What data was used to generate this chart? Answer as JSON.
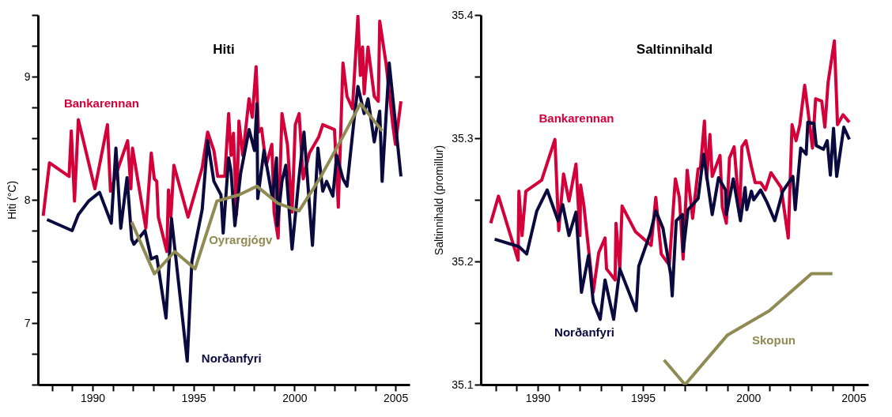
{
  "chart_data": [
    {
      "type": "line",
      "title": "Hiti",
      "ylabel": "Hiti (°C)",
      "xlim": [
        1987.3,
        2005.7
      ],
      "ylim": [
        6.5,
        9.5
      ],
      "xticks": [
        {
          "value": 1988,
          "label": null
        },
        {
          "value": 1989,
          "label": null
        },
        1990,
        {
          "value": 1991,
          "label": null
        },
        {
          "value": 1992,
          "label": null
        },
        {
          "value": 1993,
          "label": null
        },
        {
          "value": 1994,
          "label": null
        },
        1995,
        {
          "value": 1996,
          "label": null
        },
        {
          "value": 1997,
          "label": null
        },
        {
          "value": 1998,
          "label": null
        },
        {
          "value": 1999,
          "label": null
        },
        2000,
        {
          "value": 2001,
          "label": null
        },
        {
          "value": 2002,
          "label": null
        },
        {
          "value": 2003,
          "label": null
        },
        {
          "value": 2004,
          "label": null
        },
        2005
      ],
      "yticks": [
        {
          "value": 6.5,
          "label": null
        },
        {
          "value": 6.75,
          "label": null
        },
        7,
        {
          "value": 7.25,
          "label": null
        },
        {
          "value": 7.5,
          "label": null
        },
        {
          "value": 7.75,
          "label": null
        },
        8,
        {
          "value": 8.25,
          "label": null
        },
        {
          "value": 8.5,
          "label": null
        },
        {
          "value": 8.75,
          "label": null
        },
        9,
        {
          "value": 9.25,
          "label": null
        },
        {
          "value": 9.5,
          "label": null
        }
      ],
      "series": [
        {
          "name": "Bankarennan",
          "color": "#d4003a",
          "x": [
            1987.56,
            1987.87,
            1988.84,
            1988.95,
            1989.11,
            1989.3,
            1990.12,
            1990.74,
            1990.89,
            1991.32,
            1991.74,
            1991.9,
            1991.98,
            1992.64,
            1992.91,
            1993.06,
            1993.18,
            1993.26,
            1993.68,
            1993.76,
            1993.88,
            1994.03,
            1994.73,
            1995.43,
            1995.7,
            1996.01,
            1996.2,
            1996.55,
            1996.74,
            1996.86,
            1996.98,
            1997.13,
            1997.25,
            1997.44,
            1997.75,
            1997.91,
            1998.1,
            1998.22,
            1998.37,
            1998.6,
            1998.88,
            1998.99,
            1999.19,
            1999.38,
            1999.65,
            1999.88,
            2000.04,
            2000.23,
            2000.43,
            2000.74,
            2001.2,
            2001.4,
            2001.98,
            2002.17,
            2002.4,
            2002.6,
            2002.87,
            2003.14,
            2003.26,
            2003.37,
            2003.45,
            2003.64,
            2003.95,
            2004.15,
            2004.22,
            2004.53,
            2004.88,
            2005.0,
            2005.27
          ],
          "values": [
            7.87,
            8.3,
            8.19,
            8.56,
            7.99,
            8.65,
            8.09,
            8.61,
            8.07,
            8.28,
            8.48,
            8.09,
            8.42,
            7.77,
            8.38,
            8.17,
            8.15,
            7.86,
            7.58,
            8.08,
            7.86,
            8.28,
            7.86,
            8.26,
            8.55,
            8.4,
            8.19,
            8.19,
            8.7,
            8.36,
            8.54,
            7.88,
            8.64,
            8.36,
            8.82,
            8.67,
            9.08,
            8.55,
            8.58,
            8.28,
            8.45,
            7.9,
            7.69,
            8.7,
            8.45,
            7.9,
            8.61,
            8.7,
            8.17,
            8.38,
            8.51,
            8.61,
            8.57,
            7.94,
            9.11,
            8.84,
            8.74,
            9.49,
            9.01,
            9.24,
            8.86,
            9.24,
            8.84,
            8.8,
            9.45,
            9.11,
            8.59,
            8.45,
            8.8
          ]
        },
        {
          "name": "Norðanfyri",
          "color": "#0b0a3e",
          "x": [
            1987.75,
            1988.99,
            1989.3,
            1989.81,
            1990.35,
            1990.93,
            1991.16,
            1991.4,
            1991.71,
            1991.94,
            1992.05,
            1992.6,
            1992.91,
            1993.18,
            1993.64,
            1993.91,
            1994.69,
            1994.92,
            1995.43,
            1995.7,
            1996.01,
            1996.36,
            1996.47,
            1996.74,
            1996.86,
            1997.05,
            1997.33,
            1997.75,
            1998.02,
            1998.14,
            1998.18,
            1998.49,
            1998.72,
            1998.91,
            1999.11,
            1999.15,
            1999.38,
            1999.57,
            1999.88,
            2000.23,
            2000.47,
            2000.89,
            2001.16,
            2001.4,
            2001.59,
            2001.9,
            2002.09,
            2002.4,
            2002.6,
            2002.95,
            2003.14,
            2003.45,
            2003.64,
            2003.95,
            2004.22,
            2004.34,
            2004.69,
            2005.27
          ],
          "values": [
            7.84,
            7.75,
            7.88,
            7.99,
            8.06,
            7.81,
            8.42,
            7.77,
            8.18,
            7.68,
            7.64,
            7.75,
            7.52,
            7.54,
            7.04,
            7.85,
            6.69,
            7.5,
            7.92,
            8.48,
            8.15,
            8.04,
            7.73,
            8.34,
            8.23,
            7.79,
            8.21,
            8.57,
            8.4,
            8.78,
            8.01,
            8.4,
            8.19,
            8.01,
            8.34,
            7.79,
            8.15,
            8.28,
            7.6,
            8.19,
            8.55,
            7.63,
            8.42,
            8.07,
            8.15,
            8.03,
            8.36,
            8.17,
            8.11,
            8.65,
            8.92,
            8.7,
            8.82,
            8.47,
            8.72,
            8.15,
            9.11,
            8.19
          ]
        },
        {
          "name": "Oyrargjógv",
          "color": "#8f8b52",
          "x": [
            1991.94,
            1993.06,
            1994.07,
            1995.08,
            1996.16,
            1997.25,
            1998.14,
            1999.19,
            2000.23,
            2001.24,
            2002.29,
            2003.26,
            2004.34
          ],
          "values": [
            7.82,
            7.4,
            7.58,
            7.44,
            7.99,
            8.04,
            8.11,
            7.97,
            7.91,
            8.17,
            8.48,
            8.78,
            8.56
          ]
        }
      ]
    },
    {
      "type": "line",
      "title": "Saltinnihald",
      "ylabel": "Saltinnihald (promillur)",
      "xlim": [
        1987.3,
        2005.7
      ],
      "ylim": [
        35.1,
        35.4
      ],
      "xticks": [
        {
          "value": 1988,
          "label": null
        },
        {
          "value": 1989,
          "label": null
        },
        1990,
        {
          "value": 1991,
          "label": null
        },
        {
          "value": 1992,
          "label": null
        },
        {
          "value": 1993,
          "label": null
        },
        {
          "value": 1994,
          "label": null
        },
        1995,
        {
          "value": 1996,
          "label": null
        },
        {
          "value": 1997,
          "label": null
        },
        {
          "value": 1998,
          "label": null
        },
        {
          "value": 1999,
          "label": null
        },
        2000,
        {
          "value": 2001,
          "label": null
        },
        {
          "value": 2002,
          "label": null
        },
        {
          "value": 2003,
          "label": null
        },
        {
          "value": 2004,
          "label": null
        },
        2005
      ],
      "yticks": [
        35.1,
        {
          "value": 35.15,
          "label": null
        },
        35.2,
        {
          "value": 35.25,
          "label": null
        },
        35.3,
        {
          "value": 35.35,
          "label": null
        },
        35.4
      ],
      "series": [
        {
          "name": "Bankarennan",
          "color": "#d4003a",
          "x": [
            1987.77,
            1988.14,
            1989.07,
            1989.11,
            1989.26,
            1989.44,
            1990.19,
            1990.82,
            1991.0,
            1991.23,
            1991.49,
            1991.82,
            1992.01,
            1992.04,
            1992.19,
            1992.64,
            1992.9,
            1993.2,
            1993.27,
            1993.68,
            1993.72,
            1993.9,
            1994.01,
            1994.65,
            1995.39,
            1995.61,
            1995.87,
            1996.25,
            1996.54,
            1996.73,
            1996.91,
            1997.1,
            1997.36,
            1997.62,
            1997.73,
            1997.92,
            1998.03,
            1998.18,
            1998.29,
            1998.66,
            1998.77,
            1998.96,
            1999.11,
            1999.33,
            1999.59,
            1999.7,
            1999.89,
            2000.15,
            2000.33,
            2000.59,
            2000.82,
            2001.08,
            2001.56,
            2001.9,
            2002.08,
            2002.27,
            2002.45,
            2002.68,
            2002.86,
            2003.05,
            2003.2,
            2003.49,
            2003.64,
            2003.79,
            2004.09,
            2004.24,
            2004.5,
            2004.8
          ],
          "values": [
            35.231,
            35.253,
            35.201,
            35.257,
            35.221,
            35.257,
            35.266,
            35.299,
            35.225,
            35.271,
            35.249,
            35.279,
            35.221,
            35.262,
            35.246,
            35.175,
            35.207,
            35.219,
            35.194,
            35.185,
            35.231,
            35.194,
            35.245,
            35.224,
            35.213,
            35.252,
            35.206,
            35.197,
            35.267,
            35.252,
            35.202,
            35.274,
            35.235,
            35.275,
            35.276,
            35.314,
            35.267,
            35.303,
            35.269,
            35.286,
            35.244,
            35.231,
            35.284,
            35.293,
            35.238,
            35.293,
            35.298,
            35.277,
            35.264,
            35.264,
            35.258,
            35.272,
            35.26,
            35.219,
            35.311,
            35.298,
            35.311,
            35.343,
            35.319,
            35.292,
            35.332,
            35.33,
            35.309,
            35.345,
            35.379,
            35.311,
            35.319,
            35.313
          ]
        },
        {
          "name": "Norðanfyri",
          "color": "#0b0a3e",
          "x": [
            1987.96,
            1989.11,
            1989.48,
            1989.96,
            1990.45,
            1990.97,
            1991.19,
            1991.49,
            1991.82,
            1992.08,
            1992.42,
            1992.64,
            1992.97,
            1993.2,
            1993.61,
            1993.9,
            1994.68,
            1994.8,
            1995.35,
            1995.61,
            1995.95,
            1996.32,
            1996.39,
            1996.58,
            1996.88,
            1996.91,
            1997.14,
            1997.62,
            1997.88,
            1998.29,
            1998.59,
            1998.92,
            1998.96,
            1999.29,
            1999.63,
            1999.85,
            1999.93,
            2000.15,
            2000.26,
            2000.59,
            2000.89,
            2001.26,
            2001.64,
            2002.12,
            2002.23,
            2002.49,
            2002.75,
            2002.83,
            2003.12,
            2003.23,
            2003.57,
            2003.75,
            2003.9,
            2004.05,
            2004.2,
            2004.54,
            2004.8
          ],
          "values": [
            35.218,
            35.212,
            35.206,
            35.241,
            35.258,
            35.233,
            35.246,
            35.221,
            35.24,
            35.175,
            35.205,
            35.167,
            35.153,
            35.185,
            35.153,
            35.194,
            35.16,
            35.196,
            35.223,
            35.241,
            35.227,
            35.189,
            35.172,
            35.233,
            35.238,
            35.208,
            35.242,
            35.251,
            35.287,
            35.238,
            35.268,
            35.258,
            35.238,
            35.267,
            35.233,
            35.26,
            35.242,
            35.257,
            35.25,
            35.258,
            35.248,
            35.233,
            35.257,
            35.269,
            35.242,
            35.292,
            35.287,
            35.313,
            35.312,
            35.294,
            35.291,
            35.298,
            35.27,
            35.308,
            35.269,
            35.309,
            35.299
          ]
        },
        {
          "name": "Skopun",
          "color": "#8f8b52",
          "x": [
            1996,
            1997,
            1999,
            2001,
            2003,
            2004
          ],
          "values": [
            35.12,
            35.1,
            35.14,
            35.16,
            35.19,
            35.19
          ]
        }
      ]
    }
  ]
}
